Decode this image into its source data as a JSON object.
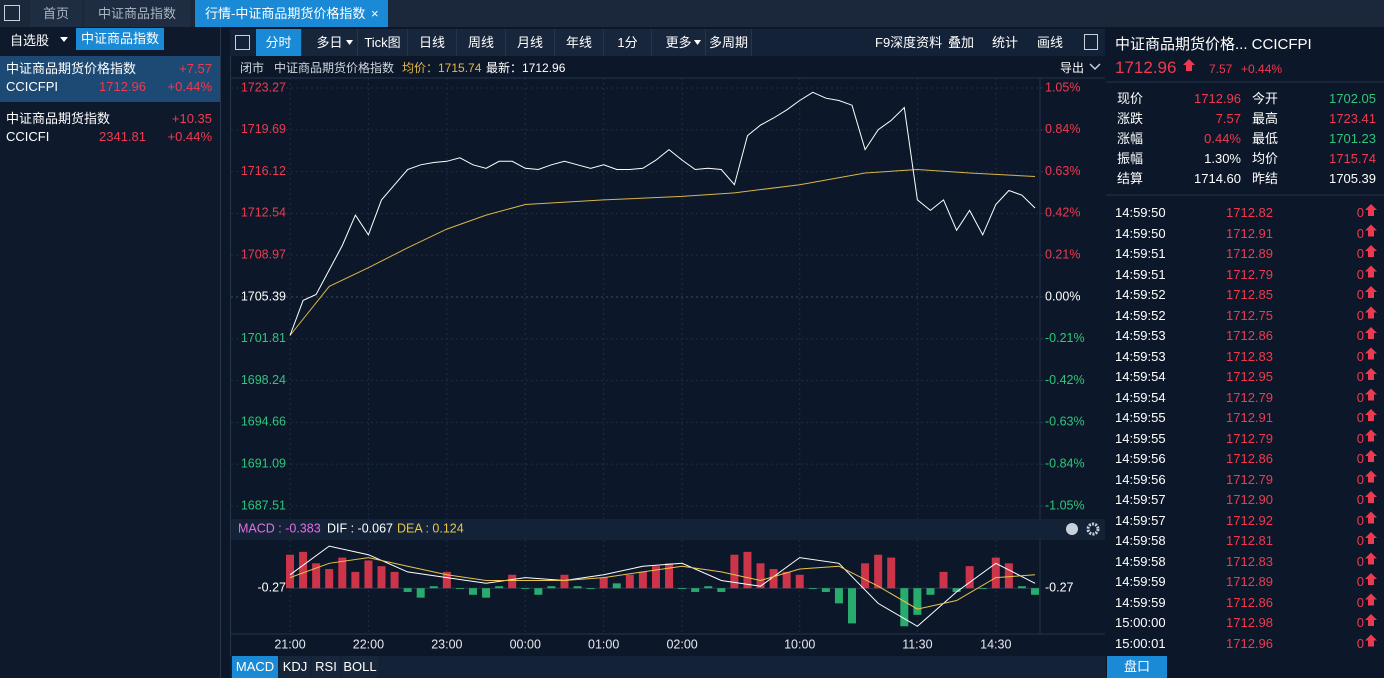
{
  "tabs": [
    "首页",
    "中证商品指数",
    "行情-中证商品期货价格指数"
  ],
  "close_icon": "×",
  "left_tabs": [
    "自选股",
    "中证商品指数"
  ],
  "watchlist": [
    {
      "name": "中证商品期货价格指数",
      "change": "+7.57",
      "code": "CCICFPI",
      "price": "1712.96",
      "pct": "+0.44%"
    },
    {
      "name": "中证商品期货指数",
      "change": "+10.35",
      "code": "CCICFI",
      "price": "2341.81",
      "pct": "+0.44%"
    }
  ],
  "toolbar": [
    "分时",
    "多日",
    "Tick图",
    "日线",
    "周线",
    "月线",
    "年线",
    "1分",
    "更多",
    "多周期"
  ],
  "toolbar_right": [
    "F9深度资料",
    "叠加",
    "统计",
    "画线"
  ],
  "info": {
    "status": "闭市",
    "name": "中证商品期货价格指数",
    "avg": "均价：1715.74",
    "last": "最新：1712.96",
    "export": "导出"
  },
  "chart_data": {
    "type": "line",
    "x": [
      0,
      10,
      20,
      30,
      40,
      50,
      60,
      70,
      80,
      90,
      100,
      110,
      120,
      130,
      140,
      150,
      160,
      170,
      180,
      190,
      200,
      210,
      220,
      230,
      240,
      250,
      260,
      270,
      280,
      290,
      300,
      310,
      320,
      330,
      340,
      350,
      360,
      370,
      380,
      390,
      400,
      410,
      420,
      430,
      440,
      450,
      460,
      470,
      480,
      490,
      500,
      510,
      520,
      530,
      540,
      550,
      560,
      570
    ],
    "series": [
      {
        "color": "#ffffff",
        "values": [
          1702.1,
          1705.1,
          1705.6,
          1707.7,
          1709.8,
          1712.4,
          1710.7,
          1713.7,
          1715.0,
          1716.3,
          1716.7,
          1716.9,
          1717.0,
          1717.3,
          1716.7,
          1716.4,
          1717.0,
          1717.0,
          1716.4,
          1716.3,
          1716.7,
          1717.0,
          1716.7,
          1716.4,
          1716.7,
          1716.3,
          1716.3,
          1716.4,
          1717.1,
          1718.0,
          1717.1,
          1716.3,
          1716.4,
          1716.3,
          1715.0,
          1719.2,
          1720.1,
          1720.7,
          1721.4,
          1722.2,
          1722.9,
          1722.4,
          1722.2,
          1721.8,
          1718.0,
          1719.7,
          1720.5,
          1721.6,
          1713.7,
          1712.8,
          1713.7,
          1711.1,
          1712.8,
          1710.7,
          1713.3,
          1714.5,
          1714.1,
          1713.0
        ]
      },
      {
        "color": "#d9b54a",
        "x": [
          0,
          30,
          60,
          90,
          120,
          150,
          180,
          240,
          300,
          340,
          390,
          440,
          480,
          520,
          570
        ],
        "values": [
          1702.1,
          1706.3,
          1707.9,
          1709.6,
          1711.2,
          1712.4,
          1713.3,
          1713.7,
          1714.0,
          1714.3,
          1715.0,
          1716.0,
          1716.3,
          1716.0,
          1715.7
        ]
      }
    ],
    "xlim": [
      0,
      570
    ],
    "xticks": [
      {
        "value": 0,
        "label": "21:00"
      },
      {
        "value": 60,
        "label": "22:00"
      },
      {
        "value": 120,
        "label": "23:00"
      },
      {
        "value": 180,
        "label": "00:00"
      },
      {
        "value": 240,
        "label": "01:00"
      },
      {
        "value": 300,
        "label": "02:00"
      },
      {
        "value": 390,
        "label": "10:00"
      },
      {
        "value": 480,
        "label": "11:30"
      },
      {
        "value": 540,
        "label": "14:30"
      }
    ],
    "ylim": [
      1687.51,
      1723.27
    ],
    "yticks": [
      1723.27,
      1719.69,
      1716.12,
      1712.54,
      1708.97,
      1705.39,
      1701.81,
      1698.24,
      1694.66,
      1691.09,
      1687.51
    ],
    "y2lim": [
      -1.05,
      1.05
    ],
    "y2ticks": [
      {
        "value": 1.05,
        "label": "1.05%"
      },
      {
        "value": 0.84,
        "label": "0.84%"
      },
      {
        "value": 0.63,
        "label": "0.63%"
      },
      {
        "value": 0.42,
        "label": "0.42%"
      },
      {
        "value": 0.21,
        "label": "0.21%"
      },
      {
        "value": 0,
        "label": "0.00%"
      },
      {
        "value": -0.21,
        "label": "-0.21%"
      },
      {
        "value": -0.42,
        "label": "-0.42%"
      },
      {
        "value": -0.63,
        "label": "-0.63%"
      },
      {
        "value": -0.84,
        "label": "-0.84%"
      },
      {
        "value": -1.05,
        "label": "-1.05%"
      }
    ],
    "grid": true,
    "up_color": "#ee3a50",
    "down_color": "#2fc57a"
  },
  "macd": {
    "type": "bar",
    "labels": [
      "MACD : -0.383",
      "DIF : -0.067",
      "DEA : 0.124"
    ],
    "label_colors": [
      "#e36fe6",
      "#ffffff",
      "#e8c54a"
    ],
    "values": [
      0.9,
      1.0,
      0.6,
      0.4,
      0.8,
      0.3,
      0.7,
      0.5,
      0.3,
      -0.4,
      -0.6,
      -0.2,
      0.3,
      -0.3,
      -0.5,
      -0.6,
      -0.2,
      0.2,
      -0.3,
      -0.5,
      -0.2,
      0.2,
      -0.2,
      -0.3,
      0.1,
      -0.1,
      0.2,
      0.3,
      0.5,
      0.6,
      -0.3,
      -0.4,
      -0.2,
      -0.4,
      0.9,
      1.0,
      0.6,
      0.4,
      0.3,
      0.2,
      -0.3,
      -0.4,
      -0.8,
      -1.5,
      0.6,
      0.9,
      0.8,
      -1.6,
      -1.2,
      -0.5,
      0.3,
      -0.4,
      0.5,
      -0.3,
      0.8,
      0.6,
      -0.2,
      -0.5
    ],
    "lines_x": [
      0,
      30,
      60,
      90,
      120,
      150,
      180,
      210,
      240,
      270,
      300,
      330,
      360,
      390,
      420,
      450,
      480,
      510,
      540,
      570
    ],
    "series": [
      {
        "color": "#ffffff",
        "values": [
          0.2,
          1.2,
          0.9,
          0.3,
          0.1,
          -0.1,
          0.1,
          0.0,
          0.2,
          0.5,
          0.6,
          0.0,
          -0.2,
          0.8,
          0.6,
          -0.8,
          -1.6,
          -0.4,
          0.6,
          -0.1
        ]
      },
      {
        "color": "#e8c54a",
        "values": [
          0.1,
          0.6,
          0.8,
          0.5,
          0.2,
          0.0,
          0.0,
          0.0,
          0.1,
          0.3,
          0.5,
          0.3,
          0.0,
          0.4,
          0.5,
          -0.2,
          -1.0,
          -0.7,
          0.1,
          0.2
        ]
      }
    ],
    "ylim": [
      -1.8,
      1.24
    ],
    "yticks": [
      -0.27
    ]
  },
  "indicator_tabs": [
    "MACD",
    "KDJ",
    "RSI",
    "BOLL"
  ],
  "quote": {
    "title": "中证商品期货价格... CCICFPI",
    "price": "1712.96",
    "change": "7.57",
    "pct": "+0.44%",
    "rows": [
      [
        {
          "k": "现价",
          "v": "1712.96",
          "c": "#ee3a50"
        },
        {
          "k": "今开",
          "v": "1702.05",
          "c": "#2fc57a"
        }
      ],
      [
        {
          "k": "涨跌",
          "v": "7.57",
          "c": "#ee3a50"
        },
        {
          "k": "最高",
          "v": "1723.41",
          "c": "#ee3a50"
        }
      ],
      [
        {
          "k": "涨幅",
          "v": "0.44%",
          "c": "#ee3a50"
        },
        {
          "k": "最低",
          "v": "1701.23",
          "c": "#2fc57a"
        }
      ],
      [
        {
          "k": "振幅",
          "v": "1.30%",
          "c": "#ffffff"
        },
        {
          "k": "均价",
          "v": "1715.74",
          "c": "#ee3a50"
        }
      ],
      [
        {
          "k": "结算",
          "v": "1714.60",
          "c": "#ffffff"
        },
        {
          "k": "昨结",
          "v": "1705.39",
          "c": "#ffffff"
        }
      ]
    ],
    "ticks": [
      [
        "14:59:50",
        "1712.82",
        "0"
      ],
      [
        "14:59:50",
        "1712.91",
        "0"
      ],
      [
        "14:59:51",
        "1712.89",
        "0"
      ],
      [
        "14:59:51",
        "1712.79",
        "0"
      ],
      [
        "14:59:52",
        "1712.85",
        "0"
      ],
      [
        "14:59:52",
        "1712.75",
        "0"
      ],
      [
        "14:59:53",
        "1712.86",
        "0"
      ],
      [
        "14:59:53",
        "1712.83",
        "0"
      ],
      [
        "14:59:54",
        "1712.95",
        "0"
      ],
      [
        "14:59:54",
        "1712.79",
        "0"
      ],
      [
        "14:59:55",
        "1712.91",
        "0"
      ],
      [
        "14:59:55",
        "1712.79",
        "0"
      ],
      [
        "14:59:56",
        "1712.86",
        "0"
      ],
      [
        "14:59:56",
        "1712.79",
        "0"
      ],
      [
        "14:59:57",
        "1712.90",
        "0"
      ],
      [
        "14:59:57",
        "1712.92",
        "0"
      ],
      [
        "14:59:58",
        "1712.81",
        "0"
      ],
      [
        "14:59:58",
        "1712.83",
        "0"
      ],
      [
        "14:59:59",
        "1712.89",
        "0"
      ],
      [
        "14:59:59",
        "1712.86",
        "0"
      ],
      [
        "15:00:00",
        "1712.98",
        "0"
      ],
      [
        "15:00:01",
        "1712.96",
        "0"
      ]
    ],
    "panel_tab": "盘口"
  }
}
